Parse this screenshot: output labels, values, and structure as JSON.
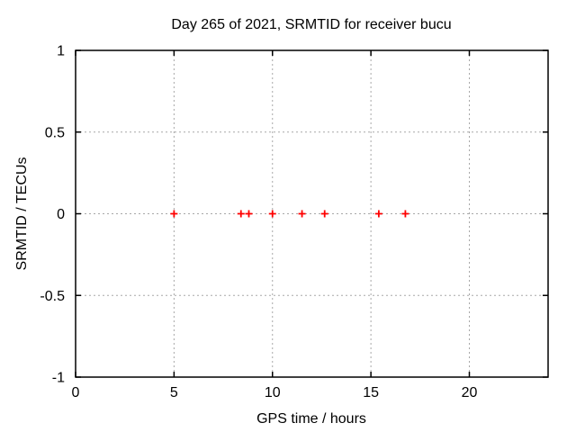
{
  "chart_data": {
    "type": "scatter",
    "title": "Day 265 of 2021, SRMTID for receiver bucu",
    "xlabel": "GPS time / hours",
    "ylabel": "SRMTID / TECUs",
    "xlim": [
      0,
      24
    ],
    "ylim": [
      -1,
      1
    ],
    "xtick_labels": [
      "0",
      "5",
      "10",
      "15",
      "20"
    ],
    "ytick_labels": [
      "1",
      "0.5",
      "0",
      "-0.5",
      "-1"
    ],
    "grid": true,
    "legend_position": "none",
    "marker_symbol": "plus",
    "marker_color": "#ff0000",
    "grid_color": "#a8a8a8",
    "axis_color": "#000000",
    "background_color": "#ffffff",
    "points": [
      {
        "x": 5.0,
        "y": 0
      },
      {
        "x": 8.4,
        "y": 0
      },
      {
        "x": 8.8,
        "y": 0
      },
      {
        "x": 10.0,
        "y": 0
      },
      {
        "x": 11.5,
        "y": 0
      },
      {
        "x": 12.65,
        "y": 0
      },
      {
        "x": 15.4,
        "y": 0
      },
      {
        "x": 16.75,
        "y": 0
      }
    ]
  }
}
